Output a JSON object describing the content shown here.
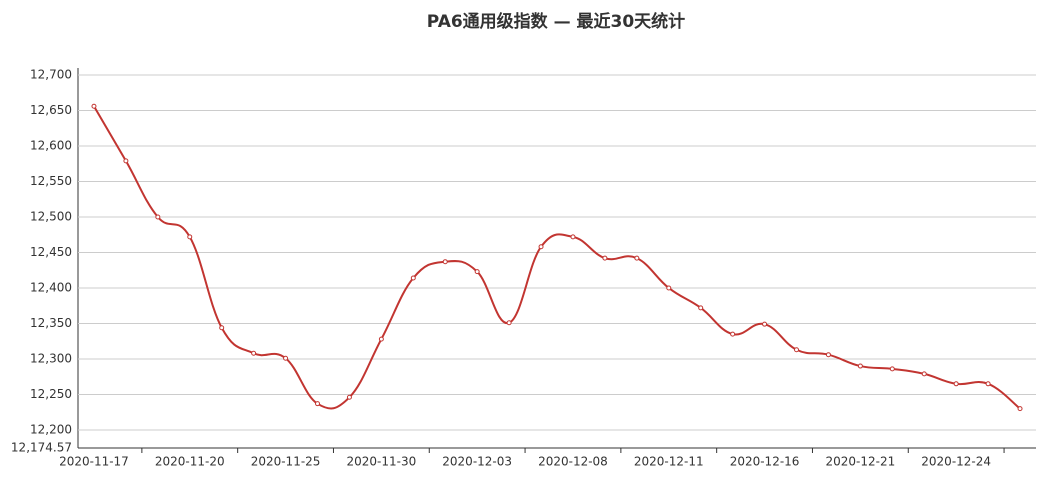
{
  "chart_data": {
    "type": "line",
    "title": "PA6通用级指数   —   最近30天统计",
    "categories": [
      "2020-11-17",
      null,
      null,
      "2020-11-20",
      null,
      null,
      "2020-11-25",
      null,
      null,
      "2020-11-30",
      null,
      null,
      "2020-12-03",
      null,
      null,
      "2020-12-08",
      null,
      null,
      "2020-12-11",
      null,
      null,
      "2020-12-16",
      null,
      null,
      "2020-12-21",
      null,
      null,
      "2020-12-24",
      null,
      null
    ],
    "values": [
      12656,
      12579,
      12500,
      12472,
      12344,
      12308,
      12301,
      12237,
      12246,
      12328,
      12414,
      12437,
      12423,
      12351,
      12458,
      12472,
      12442,
      12442,
      12400,
      12372,
      12335,
      12349,
      12313,
      12306,
      12290,
      12286,
      12279,
      12265,
      12265,
      12230
    ],
    "color": "#c23531",
    "ylim": [
      12174.57,
      12700
    ],
    "yticks": [
      {
        "value": 12174.57,
        "label": "12,174.57"
      },
      {
        "value": 12200,
        "label": "12,200"
      },
      {
        "value": 12250,
        "label": "12,250"
      },
      {
        "value": 12300,
        "label": "12,300"
      },
      {
        "value": 12350,
        "label": "12,350"
      },
      {
        "value": 12400,
        "label": "12,400"
      },
      {
        "value": 12450,
        "label": "12,450"
      },
      {
        "value": 12500,
        "label": "12,500"
      },
      {
        "value": 12550,
        "label": "12,550"
      },
      {
        "value": 12600,
        "label": "12,600"
      },
      {
        "value": 12650,
        "label": "12,650"
      },
      {
        "value": 12700,
        "label": "12,700"
      }
    ],
    "grid": true
  }
}
